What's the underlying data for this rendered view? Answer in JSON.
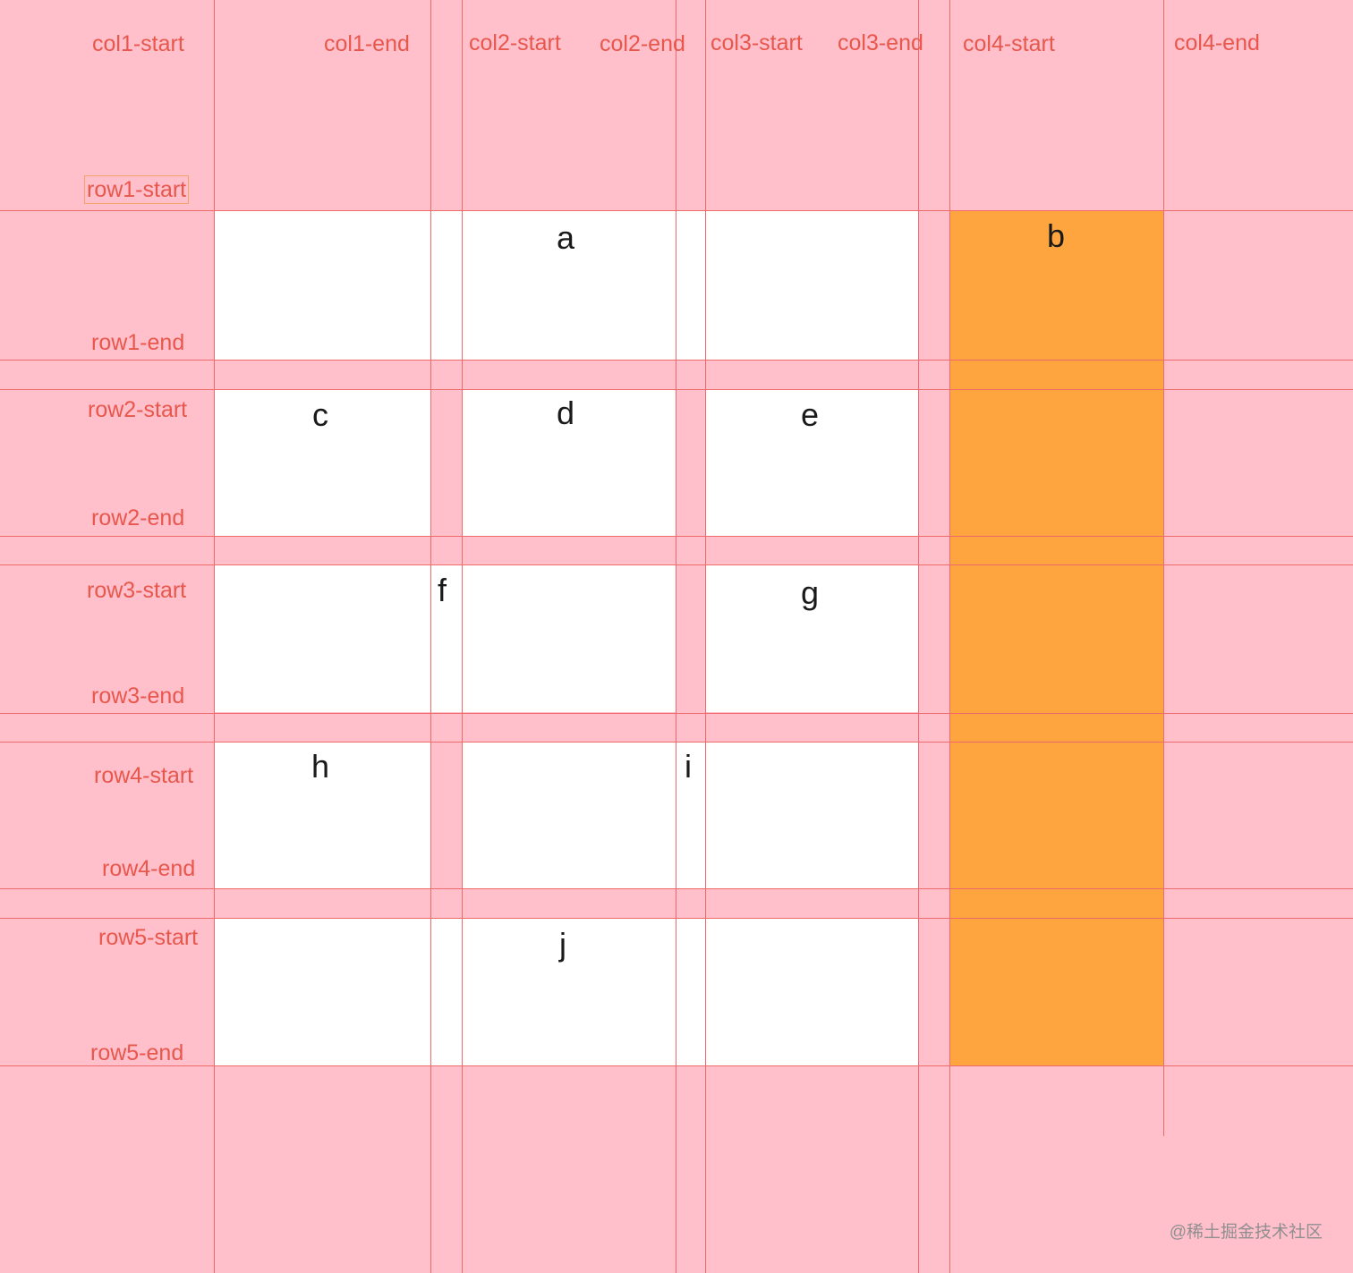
{
  "column_labels": [
    "col1-start",
    "col1-end",
    "col2-start",
    "col2-end",
    "col3-start",
    "col3-end",
    "col4-start",
    "col4-end"
  ],
  "row_labels": [
    "row1-start",
    "row1-end",
    "row2-start",
    "row2-end",
    "row3-start",
    "row3-end",
    "row4-start",
    "row4-end",
    "row5-start",
    "row5-end"
  ],
  "cells": {
    "a": "a",
    "b": "b",
    "c": "c",
    "d": "d",
    "e": "e",
    "f": "f",
    "g": "g",
    "h": "h",
    "i": "i",
    "j": "j"
  },
  "highlight_color": "#ffa53f",
  "background_color": "#ffbfcb",
  "watermark": "@稀土掘金技术社区"
}
